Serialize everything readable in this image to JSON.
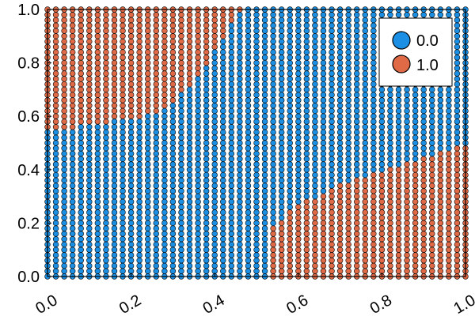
{
  "chart_data": {
    "type": "scatter",
    "title": "",
    "xlabel": "",
    "ylabel": "",
    "xlim": [
      0.0,
      1.0
    ],
    "ylim": [
      0.0,
      1.0
    ],
    "x_ticks": [
      "0.0",
      "0.2",
      "0.4",
      "0.6",
      "0.8",
      "1.0"
    ],
    "y_ticks": [
      "0.0",
      "0.2",
      "0.4",
      "0.6",
      "0.8",
      "1.0"
    ],
    "grid": false,
    "legend_position": "top-right",
    "grid_points": {
      "x_start": 0.0,
      "x_end": 1.0,
      "x_count": 51,
      "y_start": 0.0,
      "y_end": 1.0,
      "y_count": 51
    },
    "series": [
      {
        "name": "0.0",
        "color": "#1a8fe3",
        "region": "all grid points not in class 1.0"
      },
      {
        "name": "1.0",
        "color": "#e06a45",
        "region_upper_left": {
          "description": "class 1.0 where y >= boundary(x), x in [0, 0.46]",
          "boundary_x": [
            0.0,
            0.06,
            0.14,
            0.22,
            0.26,
            0.3,
            0.34,
            0.38,
            0.42,
            0.44,
            0.46
          ],
          "boundary_y": [
            0.56,
            0.56,
            0.58,
            0.6,
            0.62,
            0.66,
            0.72,
            0.8,
            0.9,
            0.96,
            1.0
          ]
        },
        "region_lower_right": {
          "description": "class 1.0 where y <= boundary(x), x in [0.54, 1.0]",
          "boundary_x": [
            0.54,
            0.58,
            0.62,
            0.66,
            0.7,
            0.74,
            0.78,
            0.82,
            0.86,
            0.9,
            0.94,
            0.98,
            1.0
          ],
          "boundary_y": [
            0.18,
            0.24,
            0.28,
            0.3,
            0.34,
            0.36,
            0.38,
            0.4,
            0.42,
            0.44,
            0.46,
            0.48,
            0.48
          ]
        }
      }
    ]
  }
}
